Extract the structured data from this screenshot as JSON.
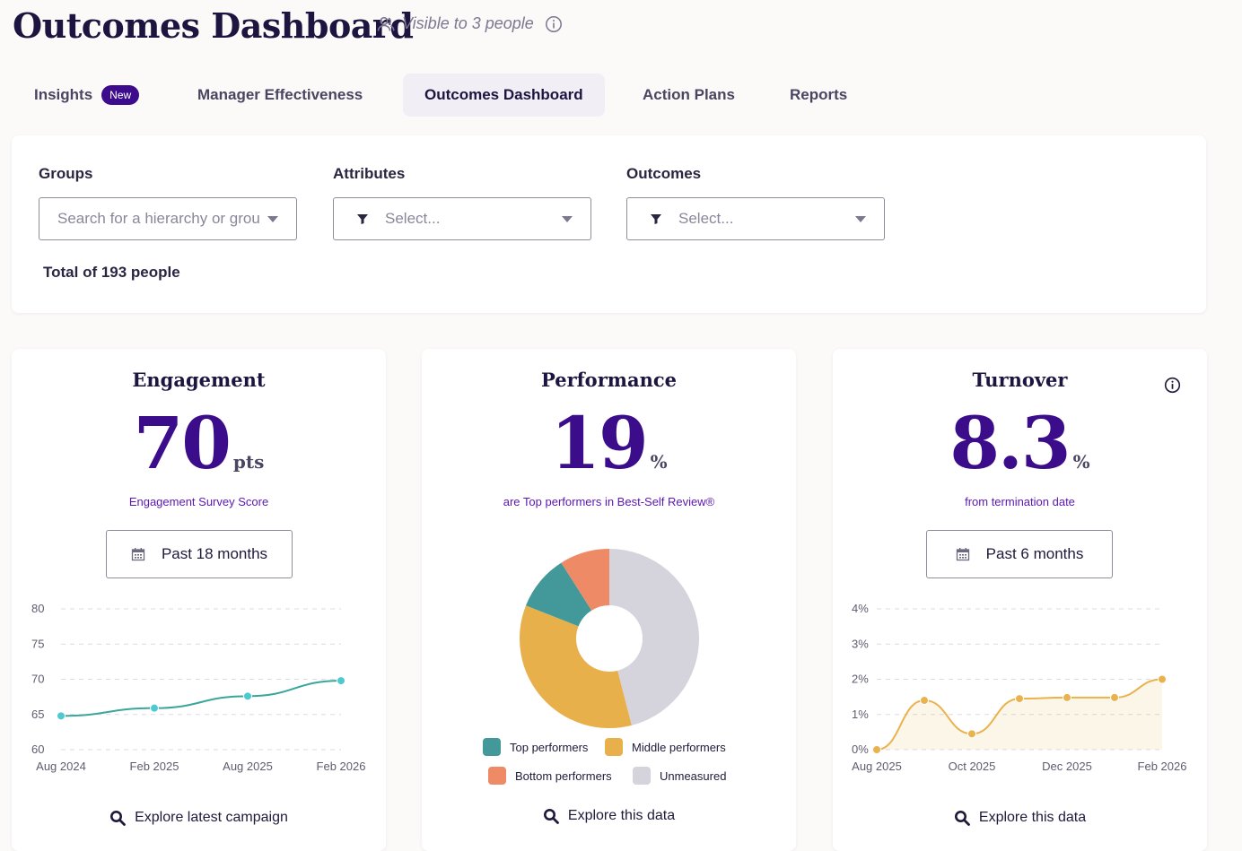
{
  "header": {
    "title": "Outcomes Dashboard",
    "visibility": "Visible to 3 people"
  },
  "tabs": [
    {
      "label": "Insights",
      "badge": "New"
    },
    {
      "label": "Manager Effectiveness"
    },
    {
      "label": "Outcomes Dashboard",
      "active": true
    },
    {
      "label": "Action Plans"
    },
    {
      "label": "Reports"
    }
  ],
  "filters": {
    "groups": {
      "label": "Groups",
      "placeholder": "Search for a hierarchy or group"
    },
    "attributes": {
      "label": "Attributes",
      "placeholder": "Select..."
    },
    "outcomes": {
      "label": "Outcomes",
      "placeholder": "Select..."
    },
    "total": "Total of 193 people"
  },
  "engagement": {
    "title": "Engagement",
    "value": "70",
    "unit": "pts",
    "subtitle": "Engagement Survey Score",
    "range": "Past 18 months",
    "explore": "Explore latest campaign",
    "color": "#3aa69b"
  },
  "performance": {
    "title": "Performance",
    "value": "19",
    "unit": "%",
    "subtitle": "are Top performers in Best-Self Review®",
    "explore": "Explore this data",
    "legend": [
      {
        "label": "Top performers",
        "color": "#43999a"
      },
      {
        "label": "Middle performers",
        "color": "#e8b04a"
      },
      {
        "label": "Bottom performers",
        "color": "#ee8a66"
      },
      {
        "label": "Unmeasured",
        "color": "#d5d4dc"
      }
    ]
  },
  "turnover": {
    "title": "Turnover",
    "value": "8.3",
    "unit": "%",
    "subtitle": "from termination date",
    "range": "Past 6 months",
    "explore": "Explore this data",
    "color": "#e9b24d"
  },
  "chart_data": [
    {
      "type": "line",
      "title": "Engagement",
      "x": [
        "Aug 2024",
        "Feb 2025",
        "Aug 2025",
        "Feb 2026"
      ],
      "y_ticks": [
        "80",
        "75",
        "70",
        "65",
        "60"
      ],
      "ylim": [
        60,
        80
      ],
      "points": [
        {
          "x": 0,
          "y": 64.8
        },
        {
          "x": 1,
          "y": 65.9
        },
        {
          "x": 2,
          "y": 67.6
        },
        {
          "x": 3,
          "y": 69.8
        }
      ],
      "grid": true
    },
    {
      "type": "pie",
      "title": "Performance",
      "slices": [
        {
          "label": "Unmeasured",
          "value": 46
        },
        {
          "label": "Middle performers",
          "value": 35
        },
        {
          "label": "Top performers",
          "value": 10
        },
        {
          "label": "Bottom performers",
          "value": 9
        }
      ]
    },
    {
      "type": "area",
      "title": "Turnover",
      "x": [
        "Aug 2025",
        "Oct 2025",
        "Dec 2025",
        "Feb 2026"
      ],
      "y_ticks": [
        "4%",
        "3%",
        "2%",
        "1%",
        "0%"
      ],
      "ylim": [
        0,
        4
      ],
      "points": [
        {
          "x": 0,
          "y": 0.0
        },
        {
          "x": 1,
          "y": 1.4
        },
        {
          "x": 2,
          "y": 0.45
        },
        {
          "x": 3,
          "y": 1.45
        },
        {
          "x": 4,
          "y": 1.48
        },
        {
          "x": 5,
          "y": 1.48
        },
        {
          "x": 6,
          "y": 2.0
        }
      ],
      "grid": true
    }
  ]
}
